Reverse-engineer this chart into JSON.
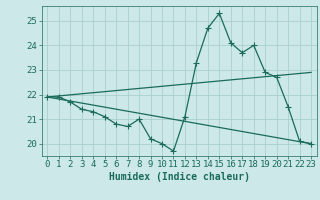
{
  "xlabel": "Humidex (Indice chaleur)",
  "bg_color": "#cce8e8",
  "line_color": "#1a6b5a",
  "grid_color": "#b8d8d8",
  "xlim": [
    -0.5,
    23.5
  ],
  "ylim": [
    19.5,
    25.6
  ],
  "xticks": [
    0,
    1,
    2,
    3,
    4,
    5,
    6,
    7,
    8,
    9,
    10,
    11,
    12,
    13,
    14,
    15,
    16,
    17,
    18,
    19,
    20,
    21,
    22,
    23
  ],
  "yticks": [
    20,
    21,
    22,
    23,
    24,
    25
  ],
  "series1_x": [
    0,
    1,
    2,
    3,
    4,
    5,
    6,
    7,
    8,
    9,
    10,
    11,
    12,
    13,
    14,
    15,
    16,
    17,
    18,
    19,
    20,
    21,
    22,
    23
  ],
  "series1_y": [
    21.9,
    21.9,
    21.7,
    21.4,
    21.3,
    21.1,
    20.8,
    20.7,
    21.0,
    20.2,
    20.0,
    19.7,
    21.1,
    23.3,
    24.7,
    25.3,
    24.1,
    23.7,
    24.0,
    22.9,
    22.7,
    21.5,
    20.1,
    20.0
  ],
  "series2_x": [
    0,
    23
  ],
  "series2_y": [
    21.9,
    22.9
  ],
  "series3_x": [
    0,
    23
  ],
  "series3_y": [
    21.9,
    20.0
  ],
  "marker_size": 2.5,
  "linewidth": 0.9,
  "xlabel_fontsize": 7,
  "tick_fontsize": 6.5
}
